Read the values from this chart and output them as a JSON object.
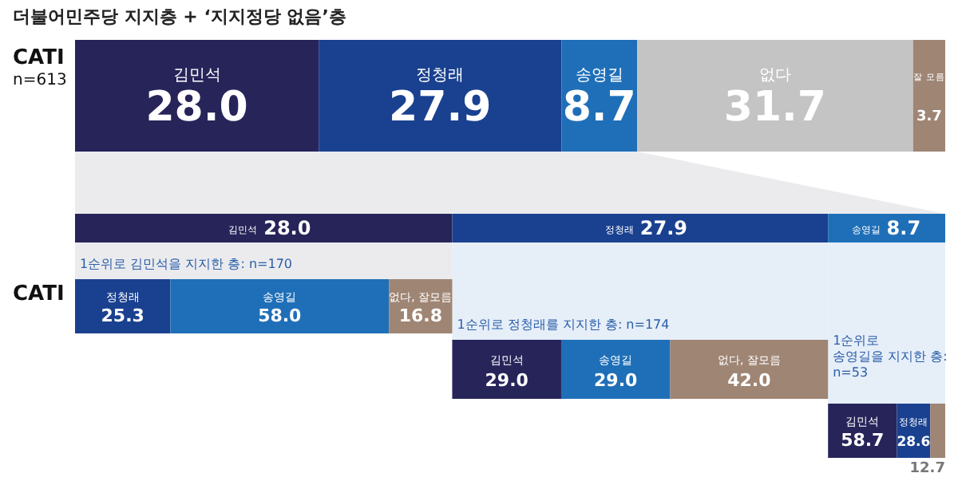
{
  "chart_data": [
    {
      "type": "bar",
      "orientation": "horizontal",
      "stacked": true,
      "title": "더불어민주당 지지층 + ‘지지정당 없음’층",
      "ylabel": "CATI\nn=613",
      "categories": [
        null
      ],
      "series": [
        {
          "name": "김민석",
          "color": "#27245a",
          "values": [
            28.0
          ],
          "value_labels": [
            "28.0"
          ]
        },
        {
          "name": "정청래",
          "color": "#1a4190",
          "values": [
            27.9
          ],
          "value_labels": [
            "27.9"
          ]
        },
        {
          "name": "송영길",
          "color": "#1f6fb8",
          "values": [
            8.7
          ],
          "value_labels": [
            "8.7"
          ]
        },
        {
          "name": "없다",
          "color": "#c4c4c4",
          "values": [
            31.7
          ],
          "value_labels": [
            "31.7"
          ]
        },
        {
          "name": "잘 모름",
          "color": "#9f8574",
          "values": [
            3.7
          ],
          "value_labels": [
            "3.7"
          ]
        }
      ]
    },
    {
      "type": "bar",
      "orientation": "horizontal",
      "stacked": true,
      "ylabel": "CATI",
      "categories": [
        null
      ],
      "series": [
        {
          "name": "김민석",
          "color": "#27245a",
          "values": [
            28.0
          ],
          "value_labels": [
            "28.0"
          ]
        },
        {
          "name": "정청래",
          "color": "#1a4190",
          "values": [
            27.9
          ],
          "value_labels": [
            "27.9"
          ]
        },
        {
          "name": "송영길",
          "color": "#1f6fb8",
          "values": [
            8.7
          ],
          "value_labels": [
            "8.7"
          ]
        }
      ]
    },
    {
      "type": "bar",
      "orientation": "horizontal",
      "stacked": true,
      "title": "1순위로 김민석을 지지한 층: n=170",
      "categories": [
        null
      ],
      "series": [
        {
          "name": "정청래",
          "color": "#1a4190",
          "values": [
            25.3
          ],
          "value_labels": [
            "25.3"
          ]
        },
        {
          "name": "송영길",
          "color": "#1f6fb8",
          "values": [
            58.0
          ],
          "value_labels": [
            "58.0"
          ]
        },
        {
          "name": "없다, 잘모름",
          "color": "#9f8574",
          "values": [
            16.8
          ],
          "value_labels": [
            "16.8"
          ]
        }
      ]
    },
    {
      "type": "bar",
      "orientation": "horizontal",
      "stacked": true,
      "title": "1순위로 정청래를 지지한 층: n=174",
      "categories": [
        null
      ],
      "series": [
        {
          "name": "김민석",
          "color": "#27245a",
          "values": [
            29.0
          ],
          "value_labels": [
            "29.0"
          ]
        },
        {
          "name": "송영길",
          "color": "#1f6fb8",
          "values": [
            29.0
          ],
          "value_labels": [
            "29.0"
          ]
        },
        {
          "name": "없다, 잘모름",
          "color": "#9f8574",
          "values": [
            42.0
          ],
          "value_labels": [
            "42.0"
          ]
        }
      ]
    },
    {
      "type": "bar",
      "orientation": "horizontal",
      "stacked": true,
      "title": "1순위로\n송영길을 지지한 층:\nn=53",
      "categories": [
        null
      ],
      "series": [
        {
          "name": "김민석",
          "color": "#27245a",
          "values": [
            58.7
          ],
          "value_labels": [
            "58.7"
          ]
        },
        {
          "name": "정청래",
          "color": "#1a4190",
          "values": [
            28.6
          ],
          "value_labels": [
            "28.6"
          ]
        },
        {
          "color": "#9f8574",
          "values": [
            12.7
          ],
          "value_labels": [
            "12.7"
          ]
        }
      ]
    }
  ]
}
